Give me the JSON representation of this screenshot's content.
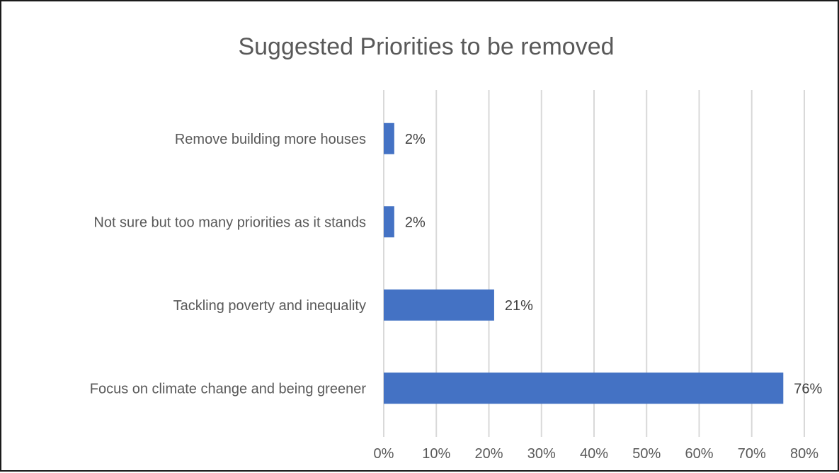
{
  "chart_data": {
    "type": "bar",
    "orientation": "horizontal",
    "title": "Suggested Priorities to be removed",
    "categories": [
      "Remove building more houses",
      "Not sure but too many priorities as it stands",
      "Tackling poverty and inequality",
      "Focus on climate change and being greener"
    ],
    "values": [
      2,
      2,
      21,
      76
    ],
    "value_labels": [
      "2%",
      "2%",
      "21%",
      "76%"
    ],
    "xlim": [
      0,
      80
    ],
    "x_ticks": [
      0,
      10,
      20,
      30,
      40,
      50,
      60,
      70,
      80
    ],
    "x_tick_labels": [
      "0%",
      "10%",
      "20%",
      "30%",
      "40%",
      "50%",
      "60%",
      "70%",
      "80%"
    ],
    "grid": true,
    "legend": "none",
    "bar_color": "#4472c4"
  }
}
